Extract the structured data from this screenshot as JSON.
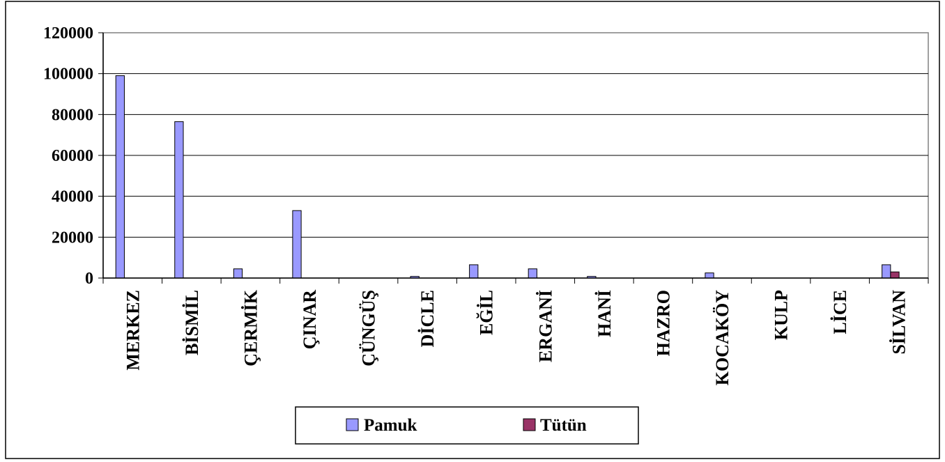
{
  "chart_data": {
    "type": "bar",
    "categories": [
      "MERKEZ",
      "BİSMİL",
      "ÇERMİK",
      "ÇINAR",
      "ÇÜNGÜŞ",
      "DİCLE",
      "EĞİL",
      "ERGANİ",
      "HANİ",
      "HAZRO",
      "KOCAKÖY",
      "KULP",
      "LİCE",
      "SİLVAN"
    ],
    "series": [
      {
        "name": "Pamuk",
        "color": "#9999ff",
        "values": [
          99000,
          76500,
          4500,
          33000,
          0,
          800,
          6500,
          4500,
          800,
          0,
          2500,
          0,
          0,
          6500
        ]
      },
      {
        "name": "Tütün",
        "color": "#993366",
        "values": [
          0,
          0,
          0,
          0,
          0,
          0,
          0,
          0,
          0,
          0,
          0,
          0,
          0,
          3000
        ]
      }
    ],
    "yticks": [
      "0",
      "20000",
      "40000",
      "60000",
      "80000",
      "100000",
      "120000"
    ],
    "ylim": [
      0,
      120000
    ],
    "grid": true,
    "legend_position": "bottom"
  }
}
